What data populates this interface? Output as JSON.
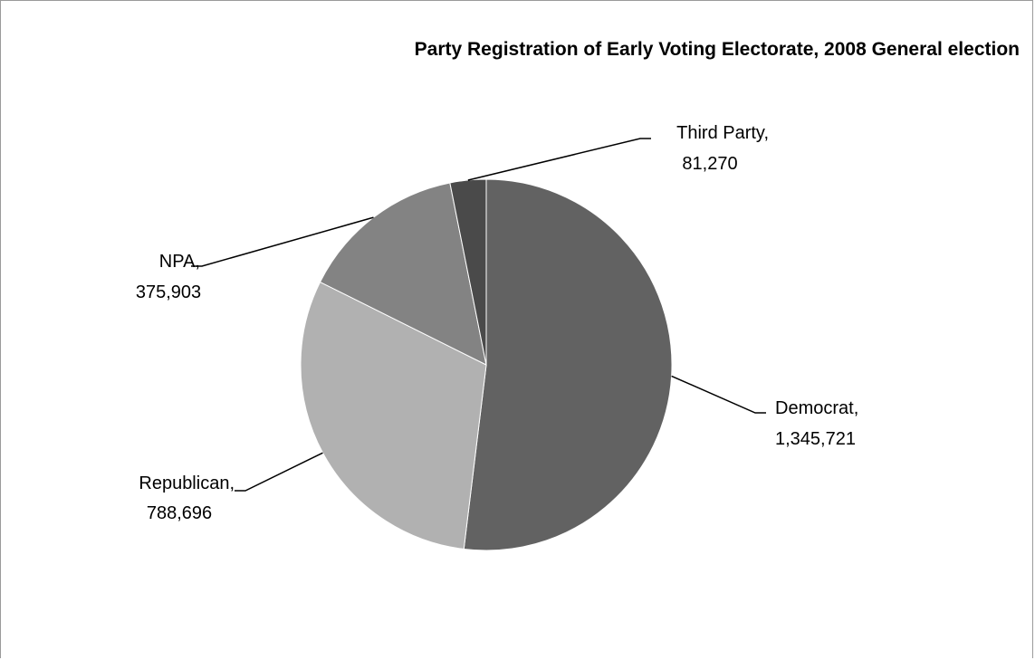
{
  "chart_data": {
    "type": "pie",
    "title": "Party Registration of Early Voting Electorate, 2008 General election",
    "slices": [
      {
        "name": "Democrat",
        "value": 1345721,
        "value_label": "1,345,721",
        "label_line1": "Democrat,",
        "color": "#626262"
      },
      {
        "name": "Republican",
        "value": 788696,
        "value_label": "788,696",
        "label_line1": "Republican,",
        "color": "#b1b1b1"
      },
      {
        "name": "NPA",
        "value": 375903,
        "value_label": "375,903",
        "label_line1": "NPA,",
        "color": "#838383"
      },
      {
        "name": "Third Party",
        "value": 81270,
        "value_label": "81,270",
        "label_line1": "Third Party,",
        "color": "#4a4a4a"
      }
    ],
    "start_angle": "12 o'clock",
    "direction": "clockwise",
    "legend": "none"
  }
}
